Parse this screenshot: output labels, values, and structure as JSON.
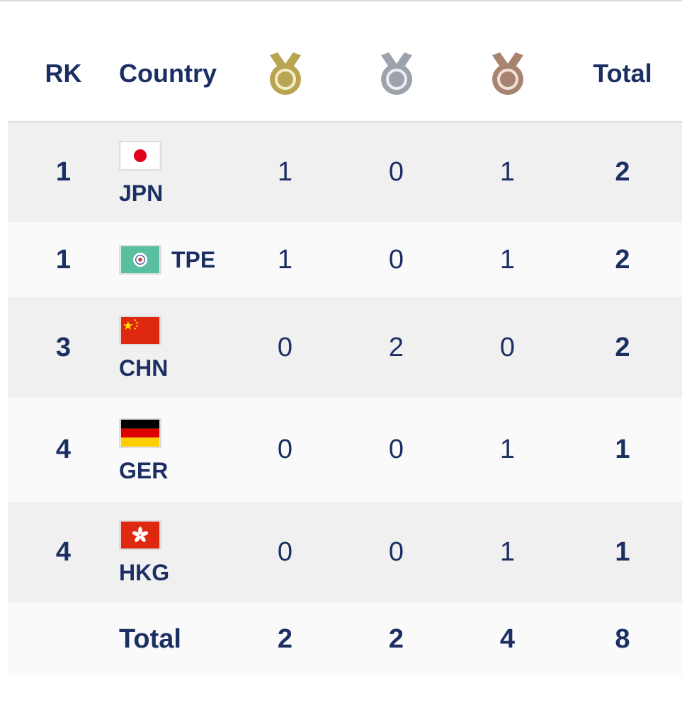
{
  "header": {
    "rank_label": "RK",
    "country_label": "Country",
    "total_label": "Total",
    "medal_icons": [
      "gold-medal-icon",
      "silver-medal-icon",
      "bronze-medal-icon"
    ]
  },
  "colors": {
    "text": "#1b2f63",
    "gold": "#b9a452",
    "silver": "#9da3ad",
    "bronze": "#a88470",
    "row_alt": "#f0f0f0"
  },
  "rows": [
    {
      "rank": "1",
      "code": "JPN",
      "flag": "japan-flag-icon",
      "gold": "1",
      "silver": "0",
      "bronze": "1",
      "total": "2"
    },
    {
      "rank": "1",
      "code": "TPE",
      "flag": "chinese-taipei-flag-icon",
      "gold": "1",
      "silver": "0",
      "bronze": "1",
      "total": "2"
    },
    {
      "rank": "3",
      "code": "CHN",
      "flag": "china-flag-icon",
      "gold": "0",
      "silver": "2",
      "bronze": "0",
      "total": "2"
    },
    {
      "rank": "4",
      "code": "GER",
      "flag": "germany-flag-icon",
      "gold": "0",
      "silver": "0",
      "bronze": "1",
      "total": "1"
    },
    {
      "rank": "4",
      "code": "HKG",
      "flag": "hong-kong-flag-icon",
      "gold": "0",
      "silver": "0",
      "bronze": "1",
      "total": "1"
    }
  ],
  "totals": {
    "label": "Total",
    "gold": "2",
    "silver": "2",
    "bronze": "4",
    "total": "8"
  }
}
